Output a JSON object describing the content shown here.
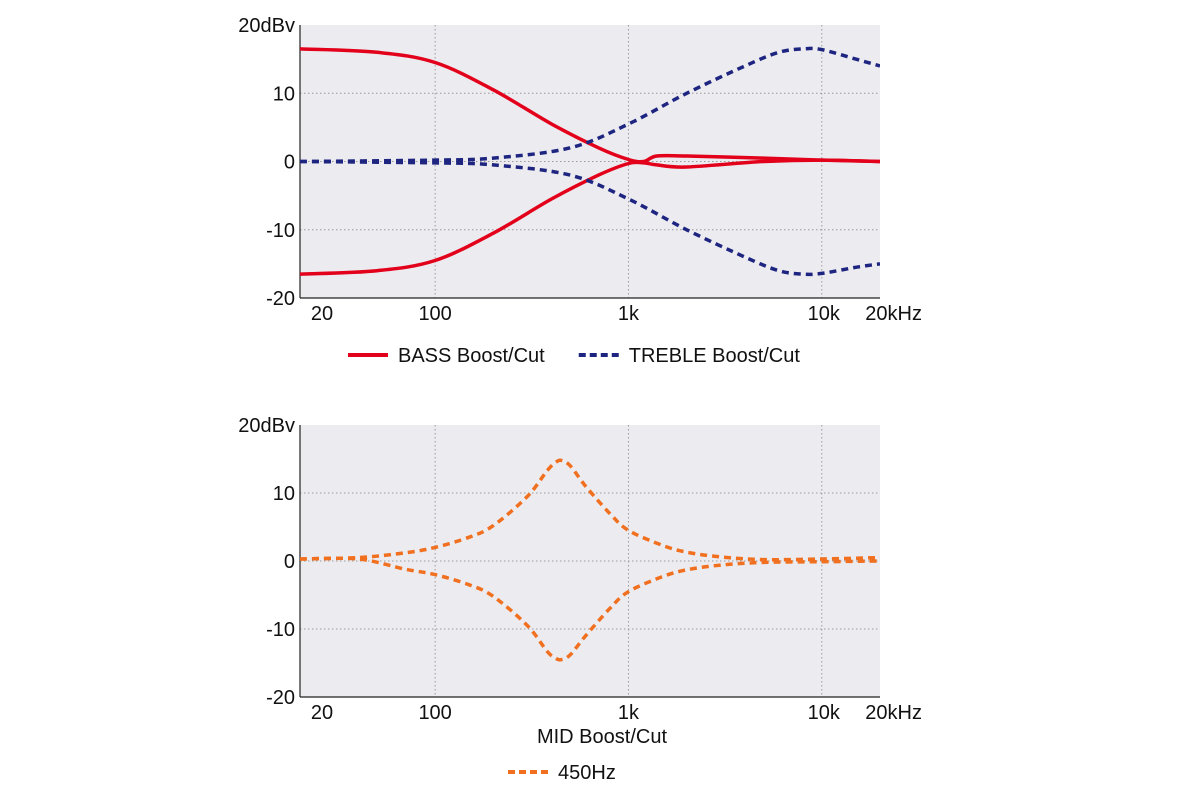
{
  "chart_data": [
    {
      "type": "line",
      "x_scale": "log",
      "xlim": [
        20,
        20000
      ],
      "ylim": [
        -20,
        20
      ],
      "x_ticks": [
        {
          "value": 20,
          "label": "20"
        },
        {
          "value": 100,
          "label": "100"
        },
        {
          "value": 1000,
          "label": "1k"
        },
        {
          "value": 10000,
          "label": "10k"
        },
        {
          "value": 20000,
          "label": "20kHz"
        }
      ],
      "y_ticks": [
        {
          "value": 20,
          "label": "20dBv"
        },
        {
          "value": 10,
          "label": "10"
        },
        {
          "value": 0,
          "label": "0"
        },
        {
          "value": -10,
          "label": "-10"
        },
        {
          "value": -20,
          "label": "-20"
        }
      ],
      "grid": true,
      "legend": "bottom",
      "series": [
        {
          "name": "BASS Boost/Cut",
          "color": "#e3001b",
          "dash": "solid",
          "curves": [
            {
              "x": [
                20,
                50,
                100,
                200,
                400,
                700,
                1000,
                1200,
                1400,
                2000,
                5000,
                10000,
                20000
              ],
              "y": [
                16.5,
                16,
                14.5,
                10.5,
                5.5,
                2,
                0.3,
                0,
                0.8,
                0.8,
                0.5,
                0.2,
                0
              ]
            },
            {
              "x": [
                20,
                50,
                100,
                200,
                400,
                700,
                1000,
                1200,
                1400,
                2000,
                5000,
                10000,
                20000
              ],
              "y": [
                -16.5,
                -16,
                -14.5,
                -10.5,
                -5.5,
                -2,
                -0.3,
                -0.2,
                -0.5,
                -0.8,
                0,
                0.2,
                0
              ]
            }
          ]
        },
        {
          "name": "TREBLE Boost/Cut",
          "color": "#1e2580",
          "dash": "dashed",
          "curves": [
            {
              "x": [
                20,
                100,
                200,
                500,
                1000,
                2000,
                4000,
                6000,
                8000,
                10000,
                15000,
                20000
              ],
              "y": [
                0,
                0.2,
                0.5,
                2,
                5.5,
                10,
                14,
                16,
                16.5,
                16.4,
                15,
                14
              ]
            },
            {
              "x": [
                20,
                100,
                200,
                500,
                1000,
                2000,
                4000,
                6000,
                8000,
                10000,
                15000,
                20000
              ],
              "y": [
                0,
                -0.2,
                -0.5,
                -2,
                -5.5,
                -10,
                -14,
                -16,
                -16.5,
                -16.4,
                -15.5,
                -15
              ]
            }
          ]
        }
      ]
    },
    {
      "type": "line",
      "x_scale": "log",
      "xlim": [
        20,
        20000
      ],
      "ylim": [
        -20,
        20
      ],
      "x_ticks": [
        {
          "value": 20,
          "label": "20"
        },
        {
          "value": 100,
          "label": "100"
        },
        {
          "value": 1000,
          "label": "1k"
        },
        {
          "value": 10000,
          "label": "10k"
        },
        {
          "value": 20000,
          "label": "20kHz"
        }
      ],
      "y_ticks": [
        {
          "value": 20,
          "label": "20dBv"
        },
        {
          "value": 10,
          "label": "10"
        },
        {
          "value": 0,
          "label": "0"
        },
        {
          "value": -10,
          "label": "-10"
        },
        {
          "value": -20,
          "label": "-20"
        }
      ],
      "grid": true,
      "legend": "bottom",
      "legend_title": "MID Boost/Cut",
      "series": [
        {
          "name": "450Hz",
          "color": "#f07020",
          "dash": "dashed",
          "curves": [
            {
              "x": [
                20,
                40,
                70,
                100,
                150,
                200,
                300,
                380,
                420,
                450,
                500,
                600,
                800,
                1000,
                1500,
                2000,
                3000,
                5000,
                10000,
                20000
              ],
              "y": [
                0.3,
                0.5,
                1.2,
                2,
                3.5,
                5.2,
                9.5,
                13.3,
                14.5,
                14.8,
                14,
                11,
                7,
                4.5,
                2.3,
                1.3,
                0.6,
                0.2,
                0.3,
                0.5
              ]
            },
            {
              "x": [
                20,
                40,
                70,
                100,
                150,
                200,
                300,
                380,
                420,
                450,
                500,
                600,
                800,
                1000,
                1500,
                2000,
                3000,
                5000,
                10000,
                20000
              ],
              "y": [
                0.3,
                0.3,
                -1.2,
                -2,
                -3.5,
                -5.2,
                -9.5,
                -13.3,
                -14.3,
                -14.5,
                -13.8,
                -11,
                -7,
                -4.5,
                -2.3,
                -1.3,
                -0.6,
                -0.2,
                -0.1,
                0
              ]
            }
          ]
        }
      ]
    }
  ]
}
